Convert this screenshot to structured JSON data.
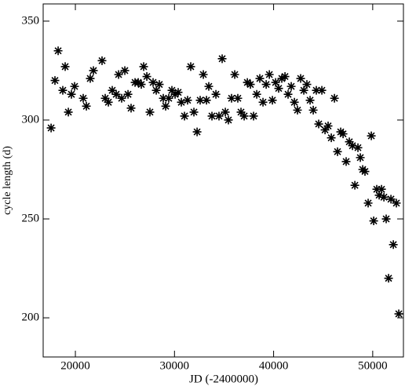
{
  "chart_data": {
    "type": "scatter",
    "x_label": "JD (-2400000)",
    "y_label": "cycle length (d)",
    "xlim": [
      16750,
      53100
    ],
    "ylim": [
      180.2,
      358.7
    ],
    "xticks": [
      20000,
      30000,
      40000,
      50000
    ],
    "yticks": [
      200,
      250,
      300,
      350
    ],
    "color": "#000000",
    "marker": "asterisk",
    "series": [
      {
        "x": [
          17550,
          17940,
          18260,
          18730,
          18970,
          19290,
          19600,
          19920,
          20790,
          21110,
          21500,
          21820,
          22690,
          23010,
          23330,
          23720,
          24120,
          24360,
          24670,
          24990,
          25310,
          25620,
          26020,
          26340,
          26650,
          26890,
          27210,
          27520,
          27840,
          28160,
          28470,
          28870,
          29110,
          29420,
          29740,
          30060,
          30370,
          30690,
          31010,
          31320,
          31640,
          31960,
          32280,
          32590,
          32910,
          33230,
          33460,
          33780,
          34180,
          34490,
          34810,
          35130,
          35440,
          35760,
          36080,
          36390,
          36710,
          37030,
          37350,
          37660,
          37980,
          38300,
          38610,
          38930,
          39250,
          39570,
          39880,
          40200,
          40510,
          40830,
          41150,
          41460,
          41780,
          42100,
          42410,
          42730,
          43050,
          43360,
          43680,
          44000,
          44310,
          44550,
          44870,
          45190,
          45500,
          45820,
          46140,
          46450,
          46770,
          47010,
          47320,
          47640,
          47960,
          48200,
          48510,
          48750,
          48990,
          49220,
          49540,
          49860,
          50100,
          50410,
          50650,
          50890,
          51130,
          51360,
          51600,
          51840,
          52080,
          52390,
          52630
        ],
        "values": [
          296,
          320,
          335,
          315,
          327,
          304,
          313,
          317,
          311,
          307,
          321,
          325,
          330,
          311,
          309,
          315,
          313,
          323,
          311,
          325,
          313,
          306,
          319,
          319,
          318,
          327,
          322,
          304,
          319,
          315,
          318,
          311,
          307,
          311,
          315,
          313,
          314,
          309,
          302,
          310,
          327,
          304,
          294,
          310,
          323,
          310,
          317,
          302,
          313,
          302,
          331,
          304,
          300,
          311,
          323,
          311,
          304,
          302,
          319,
          318,
          302,
          313,
          321,
          309,
          318,
          323,
          310,
          319,
          316,
          321,
          322,
          313,
          317,
          309,
          305,
          321,
          315,
          318,
          310,
          305,
          315,
          298,
          315,
          295,
          297,
          291,
          311,
          284,
          294,
          293,
          279,
          289,
          287,
          267,
          286,
          281,
          275,
          274,
          258,
          292,
          249,
          265,
          262,
          265,
          261,
          250,
          220,
          260,
          237,
          258,
          202
        ]
      }
    ]
  }
}
